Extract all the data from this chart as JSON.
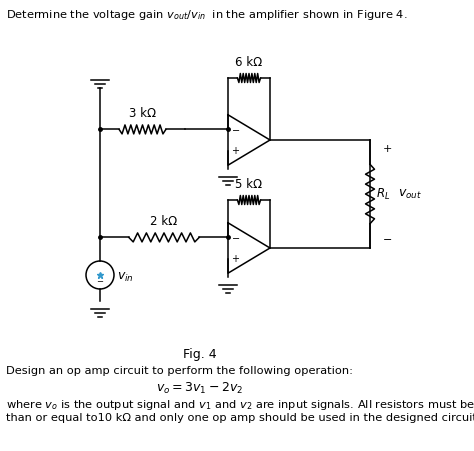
{
  "title": "Determine the voltage gain $v_{out}$/$v_{in}$  in the amplifier shown in Figure 4.",
  "fig_label": "Fig. 4",
  "bottom_text1": "Design an op amp circuit to perform the following operation:",
  "bottom_text2": "$v_o = 3v_1 - 2v_2$",
  "bottom_text3": "where $v_o$ is the output signal and $v_1$ and $v_2$ are input signals. All resistors must be less",
  "bottom_text4": "than or equal to10 kΩ and only one op amp should be used in the designed circuit.",
  "bg_color": "#ffffff",
  "text_color": "#000000",
  "lw": 1.1
}
